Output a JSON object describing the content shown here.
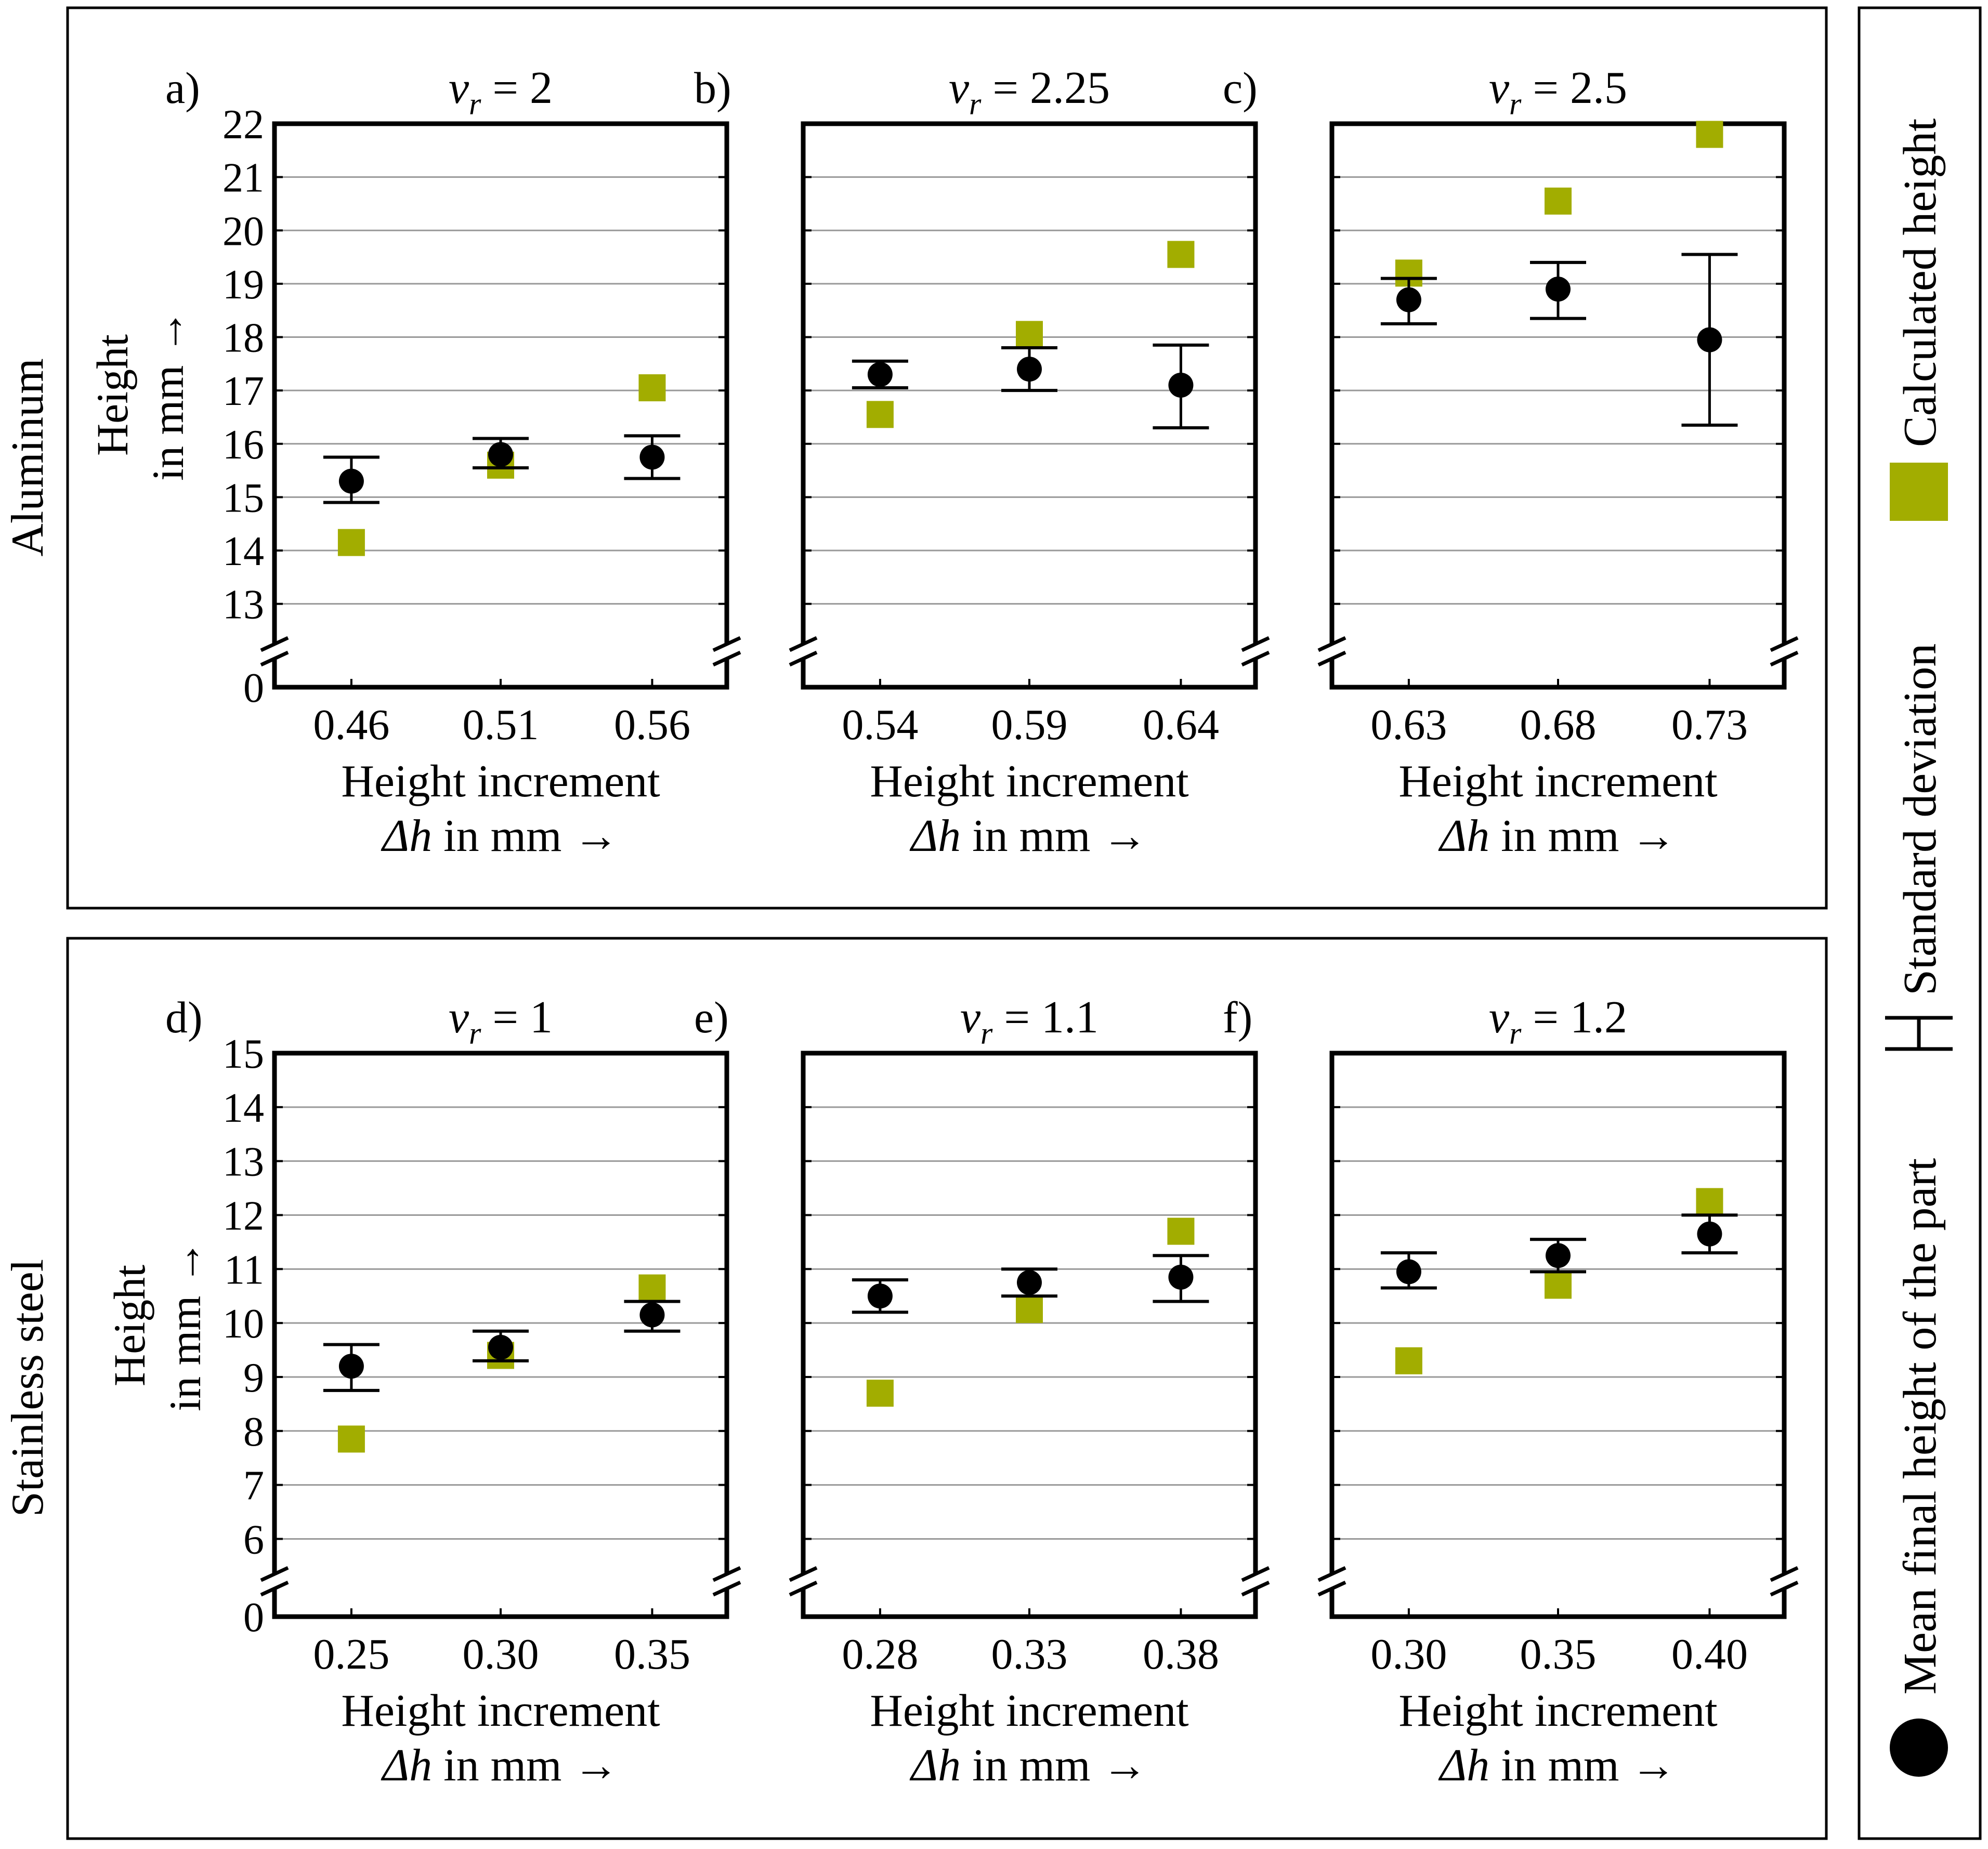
{
  "colors": {
    "calculated": "#a2ad00",
    "measured": "#000000",
    "grid": "#999999",
    "frame": "#000000"
  },
  "groups": [
    {
      "name": "aluminum",
      "label": "Aluminum",
      "ylabel": [
        "Height",
        "in mm →"
      ],
      "yticks": [
        "22",
        "21",
        "20",
        "19",
        "18",
        "17",
        "16",
        "15",
        "14",
        "13"
      ],
      "yzero": "0"
    },
    {
      "name": "stainless-steel",
      "label": "Stainless steel",
      "ylabel": [
        "Height",
        "in mm →"
      ],
      "yticks": [
        "15",
        "14",
        "13",
        "12",
        "11",
        "10",
        "9",
        "8",
        "7",
        "6"
      ],
      "yzero": "0"
    }
  ],
  "legend": {
    "mean_label": "Mean final height of the part",
    "std_label": "Standard deviation",
    "calc_label": "Calculated height"
  },
  "xlabel_line1": "Height increment",
  "xlabel_line2": "Δh in mm →",
  "chart_data": [
    {
      "type": "scatter",
      "panel": "a)",
      "title": "v_r = 2",
      "title_var": "v",
      "title_sub": "r",
      "title_value": "= 2",
      "categories": [
        "0.46",
        "0.51",
        "0.56"
      ],
      "ylim": [
        12.5,
        22
      ],
      "ytick_values": [
        13,
        14,
        15,
        16,
        17,
        18,
        19,
        20,
        21,
        22
      ],
      "yaxis_break": true,
      "xlabel": "Height increment Δh in mm →",
      "ylabel": "Height in mm →",
      "series": [
        {
          "name": "Mean final height of the part",
          "values": [
            15.3,
            15.8,
            15.75
          ]
        },
        {
          "name": "Standard deviation",
          "low": [
            14.9,
            15.55,
            15.35
          ],
          "high": [
            15.75,
            16.1,
            16.15
          ]
        },
        {
          "name": "Calculated height",
          "values": [
            14.15,
            15.6,
            17.05
          ]
        }
      ]
    },
    {
      "type": "scatter",
      "panel": "b)",
      "title": "v_r = 2.25",
      "title_var": "v",
      "title_sub": "r",
      "title_value": "= 2.25",
      "categories": [
        "0.54",
        "0.59",
        "0.64"
      ],
      "ylim": [
        12.5,
        22
      ],
      "ytick_values": [
        13,
        14,
        15,
        16,
        17,
        18,
        19,
        20,
        21,
        22
      ],
      "yaxis_break": true,
      "xlabel": "Height increment Δh in mm →",
      "ylabel": "Height in mm →",
      "series": [
        {
          "name": "Mean final height of the part",
          "values": [
            17.3,
            17.4,
            17.1
          ]
        },
        {
          "name": "Standard deviation",
          "low": [
            17.05,
            17.0,
            16.3
          ],
          "high": [
            17.55,
            17.8,
            17.85
          ]
        },
        {
          "name": "Calculated height",
          "values": [
            16.55,
            18.05,
            19.55
          ]
        }
      ]
    },
    {
      "type": "scatter",
      "panel": "c)",
      "title": "v_r = 2.5",
      "title_var": "v",
      "title_sub": "r",
      "title_value": "= 2.5",
      "categories": [
        "0.63",
        "0.68",
        "0.73"
      ],
      "ylim": [
        12.5,
        22
      ],
      "ytick_values": [
        13,
        14,
        15,
        16,
        17,
        18,
        19,
        20,
        21,
        22
      ],
      "yaxis_break": true,
      "xlabel": "Height increment Δh in mm →",
      "ylabel": "Height in mm →",
      "series": [
        {
          "name": "Mean final height of the part",
          "values": [
            18.7,
            18.9,
            17.95
          ]
        },
        {
          "name": "Standard deviation",
          "low": [
            18.25,
            18.35,
            16.35
          ],
          "high": [
            19.1,
            19.4,
            19.55
          ]
        },
        {
          "name": "Calculated height",
          "values": [
            19.2,
            20.55,
            21.8
          ]
        }
      ]
    },
    {
      "type": "scatter",
      "panel": "d)",
      "title": "v_r = 1",
      "title_var": "v",
      "title_sub": "r",
      "title_value": "= 1",
      "categories": [
        "0.25",
        "0.30",
        "0.35"
      ],
      "ylim": [
        5.6,
        15
      ],
      "ytick_values": [
        6,
        7,
        8,
        9,
        10,
        11,
        12,
        13,
        14,
        15
      ],
      "yaxis_break": true,
      "xlabel": "Height increment Δh in mm →",
      "ylabel": "Height in mm →",
      "series": [
        {
          "name": "Mean final height of the part",
          "values": [
            9.2,
            9.55,
            10.15
          ]
        },
        {
          "name": "Standard deviation",
          "low": [
            8.75,
            9.3,
            9.85
          ],
          "high": [
            9.6,
            9.85,
            10.4
          ]
        },
        {
          "name": "Calculated height",
          "values": [
            7.85,
            9.4,
            10.65
          ]
        }
      ]
    },
    {
      "type": "scatter",
      "panel": "e)",
      "title": "v_r = 1.1",
      "title_var": "v",
      "title_sub": "r",
      "title_value": "= 1.1",
      "categories": [
        "0.28",
        "0.33",
        "0.38"
      ],
      "ylim": [
        5.6,
        15
      ],
      "ytick_values": [
        6,
        7,
        8,
        9,
        10,
        11,
        12,
        13,
        14,
        15
      ],
      "yaxis_break": true,
      "xlabel": "Height increment Δh in mm →",
      "ylabel": "Height in mm →",
      "series": [
        {
          "name": "Mean final height of the part",
          "values": [
            10.5,
            10.75,
            10.85
          ]
        },
        {
          "name": "Standard deviation",
          "low": [
            10.2,
            10.5,
            10.4
          ],
          "high": [
            10.8,
            11.0,
            11.25
          ]
        },
        {
          "name": "Calculated height",
          "values": [
            8.7,
            10.25,
            11.7
          ]
        }
      ]
    },
    {
      "type": "scatter",
      "panel": "f)",
      "title": "v_r = 1.2",
      "title_var": "v",
      "title_sub": "r",
      "title_value": "= 1.2",
      "categories": [
        "0.30",
        "0.35",
        "0.40"
      ],
      "ylim": [
        5.6,
        15
      ],
      "ytick_values": [
        6,
        7,
        8,
        9,
        10,
        11,
        12,
        13,
        14,
        15
      ],
      "yaxis_break": true,
      "xlabel": "Height increment Δh in mm →",
      "ylabel": "Height in mm →",
      "series": [
        {
          "name": "Mean final height of the part",
          "values": [
            10.95,
            11.25,
            11.65
          ]
        },
        {
          "name": "Standard deviation",
          "low": [
            10.65,
            10.95,
            11.3
          ],
          "high": [
            11.3,
            11.55,
            12.0
          ]
        },
        {
          "name": "Calculated height",
          "values": [
            9.3,
            10.7,
            12.25
          ]
        }
      ]
    }
  ]
}
